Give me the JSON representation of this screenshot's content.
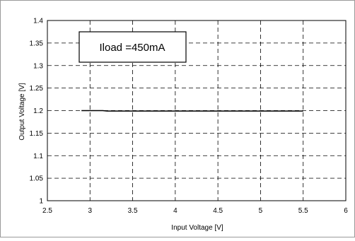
{
  "chart_data": {
    "type": "line",
    "title": "",
    "xlabel": "Input Voltage [V]",
    "ylabel": "Output Voltage [V]",
    "xlim": [
      2.5,
      6
    ],
    "ylim": [
      1.0,
      1.4
    ],
    "xticks": [
      2.5,
      3,
      3.5,
      4,
      4.5,
      5,
      5.5,
      6
    ],
    "yticks": [
      1.0,
      1.05,
      1.1,
      1.15,
      1.2,
      1.25,
      1.3,
      1.35,
      1.4
    ],
    "x_tick_labels": [
      "2.5",
      "3",
      "3.5",
      "4",
      "4.5",
      "5",
      "5.5",
      "6"
    ],
    "y_tick_labels": [
      "1",
      "1.05",
      "1.1",
      "1.15",
      "1.2",
      "1.25",
      "1.3",
      "1.35",
      "1.4"
    ],
    "grid": true,
    "grid_style": "dashed",
    "annotation": "Iload =450mA",
    "series": [
      {
        "x": [
          2.9,
          3.15,
          3.2,
          5.5
        ],
        "y": [
          1.2,
          1.2,
          1.199,
          1.199
        ],
        "color": "#000000"
      }
    ]
  }
}
